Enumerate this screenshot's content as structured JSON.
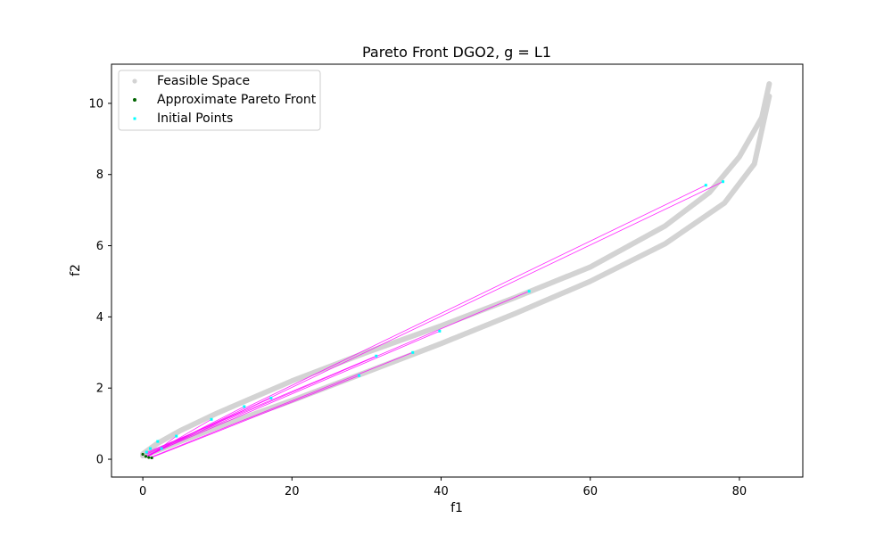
{
  "chart_data": {
    "type": "scatter",
    "title": "Pareto Front DGO2, g = L1",
    "xlabel": "f1",
    "ylabel": "f2",
    "xlim": [
      -4.2,
      88.5
    ],
    "ylim": [
      -0.5,
      11.1
    ],
    "xticks": [
      0,
      20,
      40,
      60,
      80
    ],
    "yticks": [
      0,
      2,
      4,
      6,
      8,
      10
    ],
    "grid": false,
    "legend": {
      "placement": "top-left",
      "entries": [
        {
          "label": "Feasible Space",
          "color": "#d3d3d3"
        },
        {
          "label": "Approximate Pareto Front",
          "color": "#006400"
        },
        {
          "label": "Initial Points",
          "color": "#00ffff"
        }
      ]
    },
    "feasible_space": {
      "color": "#d3d3d3",
      "upper_branch": [
        [
          0.0,
          0.15
        ],
        [
          2.0,
          0.45
        ],
        [
          5.0,
          0.8
        ],
        [
          10.0,
          1.3
        ],
        [
          20.0,
          2.2
        ],
        [
          30.0,
          3.0
        ],
        [
          40.0,
          3.75
        ],
        [
          50.0,
          4.55
        ],
        [
          60.0,
          5.4
        ],
        [
          70.0,
          6.55
        ],
        [
          76.0,
          7.5
        ],
        [
          80.0,
          8.5
        ],
        [
          83.0,
          9.6
        ],
        [
          84.0,
          10.55
        ]
      ],
      "lower_branch": [
        [
          0.0,
          0.1
        ],
        [
          2.0,
          0.25
        ],
        [
          5.0,
          0.5
        ],
        [
          10.0,
          0.9
        ],
        [
          20.0,
          1.65
        ],
        [
          30.0,
          2.45
        ],
        [
          40.0,
          3.25
        ],
        [
          50.0,
          4.1
        ],
        [
          60.0,
          5.0
        ],
        [
          70.0,
          6.05
        ],
        [
          78.0,
          7.2
        ],
        [
          82.0,
          8.3
        ],
        [
          84.0,
          10.2
        ]
      ]
    },
    "series": [
      {
        "name": "Initial Points",
        "color": "#00ffff",
        "points": [
          [
            75.5,
            7.7
          ],
          [
            77.8,
            7.8
          ],
          [
            51.8,
            4.72
          ],
          [
            39.8,
            3.6
          ],
          [
            36.2,
            3.0
          ],
          [
            31.3,
            2.9
          ],
          [
            29.0,
            2.35
          ],
          [
            17.2,
            1.72
          ],
          [
            13.6,
            1.48
          ],
          [
            9.2,
            1.12
          ],
          [
            4.5,
            0.65
          ],
          [
            2.0,
            0.5
          ],
          [
            1.0,
            0.3
          ],
          [
            0.5,
            0.2
          ],
          [
            2.5,
            0.3
          ]
        ]
      },
      {
        "name": "Approximate Pareto Front",
        "color": "#006400",
        "points": [
          [
            0.0,
            0.14
          ],
          [
            0.4,
            0.08
          ],
          [
            0.8,
            0.05
          ],
          [
            1.2,
            0.04
          ]
        ]
      }
    ],
    "trajectories": {
      "color": "#ff00ff",
      "lines": [
        [
          [
            75.5,
            7.7
          ],
          [
            1.0,
            0.15
          ]
        ],
        [
          [
            77.8,
            7.8
          ],
          [
            0.8,
            0.1
          ]
        ],
        [
          [
            51.8,
            4.72
          ],
          [
            0.6,
            0.15
          ]
        ],
        [
          [
            39.8,
            3.6
          ],
          [
            0.5,
            0.1
          ]
        ],
        [
          [
            36.2,
            3.0
          ],
          [
            1.0,
            0.05
          ]
        ],
        [
          [
            31.3,
            2.9
          ],
          [
            0.6,
            0.2
          ]
        ],
        [
          [
            29.0,
            2.35
          ],
          [
            1.2,
            0.05
          ]
        ],
        [
          [
            17.2,
            1.72
          ],
          [
            0.4,
            0.15
          ]
        ],
        [
          [
            13.6,
            1.48
          ],
          [
            0.7,
            0.1
          ]
        ],
        [
          [
            9.2,
            1.12
          ],
          [
            0.4,
            0.05
          ]
        ],
        [
          [
            4.5,
            0.65
          ],
          [
            1.0,
            0.1
          ]
        ]
      ]
    }
  }
}
